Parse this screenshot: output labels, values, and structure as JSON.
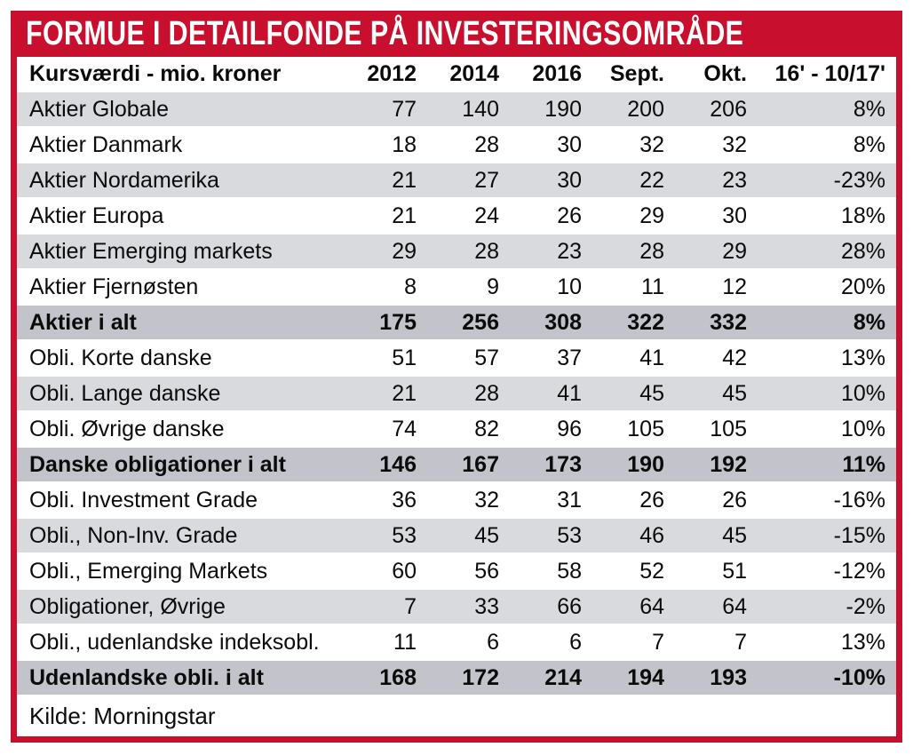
{
  "title": "FORMUE I DETAILFONDE PÅ INVESTERINGSOMRÅDE",
  "source": "Kilde: Morningstar",
  "colors": {
    "banner_red": "#c8102e",
    "row_shade": "#d9dade",
    "row_total": "#c2c3cb",
    "text": "#0b0b0b",
    "banner_text": "#ffffff"
  },
  "chart_data": {
    "type": "table",
    "title": "FORMUE I DETAILFONDE PÅ INVESTERINGSOMRÅDE",
    "columns": [
      "Kursværdi - mio. kroner",
      "2012",
      "2014",
      "2016",
      "Sept.",
      "Okt.",
      "16' - 10/17'"
    ],
    "rows": [
      {
        "label": "Aktier Globale",
        "values": [
          77,
          140,
          190,
          200,
          206,
          "8%"
        ],
        "shade": true,
        "total": false
      },
      {
        "label": "Aktier Danmark",
        "values": [
          18,
          28,
          30,
          32,
          32,
          "8%"
        ],
        "shade": false,
        "total": false
      },
      {
        "label": "Aktier Nordamerika",
        "values": [
          21,
          27,
          30,
          22,
          23,
          "-23%"
        ],
        "shade": true,
        "total": false
      },
      {
        "label": "Aktier Europa",
        "values": [
          21,
          24,
          26,
          29,
          30,
          "18%"
        ],
        "shade": false,
        "total": false
      },
      {
        "label": "Aktier Emerging markets",
        "values": [
          29,
          28,
          23,
          28,
          29,
          "28%"
        ],
        "shade": true,
        "total": false
      },
      {
        "label": "Aktier Fjernøsten",
        "values": [
          8,
          9,
          10,
          11,
          12,
          "20%"
        ],
        "shade": false,
        "total": false
      },
      {
        "label": "Aktier i alt",
        "values": [
          175,
          256,
          308,
          322,
          332,
          "8%"
        ],
        "shade": false,
        "total": true
      },
      {
        "label": "Obli. Korte danske",
        "values": [
          51,
          57,
          37,
          41,
          42,
          "13%"
        ],
        "shade": false,
        "total": false
      },
      {
        "label": "Obli. Lange danske",
        "values": [
          21,
          28,
          41,
          45,
          45,
          "10%"
        ],
        "shade": true,
        "total": false
      },
      {
        "label": "Obli. Øvrige danske",
        "values": [
          74,
          82,
          96,
          105,
          105,
          "10%"
        ],
        "shade": false,
        "total": false
      },
      {
        "label": "Danske obligationer i alt",
        "values": [
          146,
          167,
          173,
          190,
          192,
          "11%"
        ],
        "shade": false,
        "total": true
      },
      {
        "label": "Obli. Investment Grade",
        "values": [
          36,
          32,
          31,
          26,
          26,
          "-16%"
        ],
        "shade": false,
        "total": false
      },
      {
        "label": "Obli., Non-Inv. Grade",
        "values": [
          53,
          45,
          53,
          46,
          45,
          "-15%"
        ],
        "shade": true,
        "total": false
      },
      {
        "label": "Obli., Emerging Markets",
        "values": [
          60,
          56,
          58,
          52,
          51,
          "-12%"
        ],
        "shade": false,
        "total": false
      },
      {
        "label": "Obligationer, Øvrige",
        "values": [
          7,
          33,
          66,
          64,
          64,
          "-2%"
        ],
        "shade": true,
        "total": false
      },
      {
        "label": "Obli., udenlandske indeksobl.",
        "values": [
          11,
          6,
          6,
          7,
          7,
          "13%"
        ],
        "shade": false,
        "total": false
      },
      {
        "label": "Udenlandske obli. i alt",
        "values": [
          168,
          172,
          214,
          194,
          193,
          "-10%"
        ],
        "shade": false,
        "total": true
      }
    ]
  }
}
